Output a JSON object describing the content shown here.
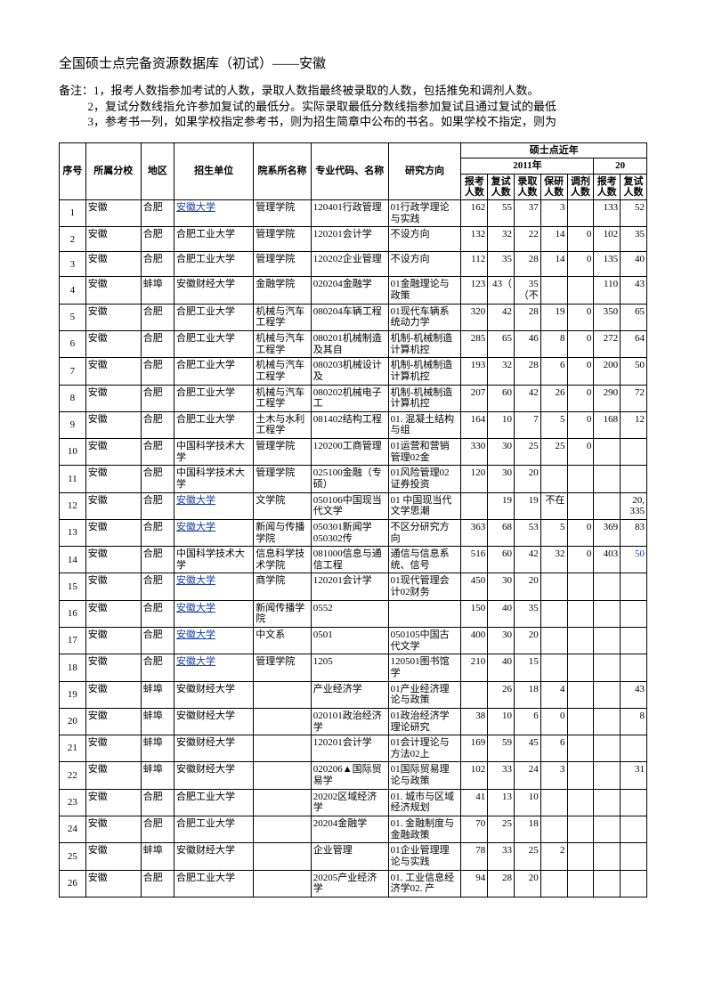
{
  "title": "全国硕士点完备资源数据库（初试）——安徽",
  "notes": {
    "label": "备注：",
    "n1": "1，报考人数指参加考试的人数，录取人数指最终被录取的人数，包括推免和调剂人数。",
    "n2": "2，复试分数线指允许参加复试的最低分。实际录取最低分数线指参加复试且通过复试的最低",
    "n3": "3，参考书一列，如果学校指定参考书，则为招生简章中公布的书名。如果学校不指定，则为"
  },
  "header": {
    "seq": "序号",
    "branch": "所属分校",
    "area": "地区",
    "unit": "招生单位",
    "dept": "院系所名称",
    "major": "专业代码、名称",
    "dir": "研究方向",
    "group": "硕士点近年",
    "y2011": "2011年",
    "y20": "20",
    "cols": [
      "报考人数",
      "复试人数",
      "录取人数",
      "保研人数",
      "调剂人数",
      "报考人数",
      "复试人数"
    ]
  },
  "rows": [
    {
      "i": "1",
      "b": "安徽",
      "a": "合肥",
      "u": "安徽大学",
      "uL": true,
      "d": "管理学院",
      "m": "120401行政管理",
      "r": "01行政学理论与实践",
      "n": [
        "162",
        "55",
        "37",
        "3",
        "",
        "133",
        "52"
      ]
    },
    {
      "i": "2",
      "b": "安徽",
      "a": "合肥",
      "u": "合肥工业大学",
      "d": "管理学院",
      "m": "120201会计学",
      "r": "不设方向",
      "n": [
        "132",
        "32",
        "22",
        "14",
        "0",
        "102",
        "35"
      ]
    },
    {
      "i": "3",
      "b": "安徽",
      "a": "合肥",
      "u": "合肥工业大学",
      "d": "管理学院",
      "m": "120202企业管理",
      "r": "不设方向",
      "n": [
        "112",
        "35",
        "28",
        "14",
        "0",
        "135",
        "40"
      ]
    },
    {
      "i": "4",
      "b": "安徽",
      "a": "蚌埠",
      "u": "安徽财经大学",
      "d": "金融学院",
      "m": "020204金融学",
      "r": "01金融理论与政策",
      "n": [
        "123",
        "43（",
        "35（不",
        "",
        "",
        "110",
        "43"
      ]
    },
    {
      "i": "5",
      "b": "安徽",
      "a": "合肥",
      "u": "合肥工业大学",
      "d": "机械与汽车工程学",
      "m": "080204车辆工程",
      "r": "01现代车辆系统动力学",
      "n": [
        "320",
        "42",
        "28",
        "19",
        "0",
        "350",
        "65"
      ]
    },
    {
      "i": "6",
      "b": "安徽",
      "a": "合肥",
      "u": "合肥工业大学",
      "d": "机械与汽车工程学",
      "m": "080201机械制造及其自",
      "r": "机制-机械制造计算机控",
      "n": [
        "285",
        "65",
        "46",
        "8",
        "0",
        "272",
        "64"
      ]
    },
    {
      "i": "7",
      "b": "安徽",
      "a": "合肥",
      "u": "合肥工业大学",
      "d": "机械与汽车工程学",
      "m": "080203机械设计及",
      "r": "机制-机械制造计算机控",
      "n": [
        "193",
        "32",
        "28",
        "6",
        "0",
        "200",
        "50"
      ]
    },
    {
      "i": "8",
      "b": "安徽",
      "a": "合肥",
      "u": "合肥工业大学",
      "d": "机械与汽车工程学",
      "m": "080202机械电子工",
      "r": "机制-机械制造计算机控",
      "n": [
        "207",
        "60",
        "42",
        "26",
        "0",
        "290",
        "72"
      ]
    },
    {
      "i": "9",
      "b": "安徽",
      "a": "合肥",
      "u": "合肥工业大学",
      "d": "土木与水利工程学",
      "m": "081402结构工程",
      "r": "01. 混凝土结构与组",
      "n": [
        "164",
        "10",
        "7",
        "5",
        "0",
        "168",
        "12"
      ]
    },
    {
      "i": "10",
      "b": "安徽",
      "a": "合肥",
      "u": "中国科学技术大学",
      "d": "管理学院",
      "m": "120200工商管理",
      "r": "01运营和营销管理02金",
      "n": [
        "330",
        "30",
        "25",
        "25",
        "0",
        "",
        ""
      ]
    },
    {
      "i": "11",
      "b": "安徽",
      "a": "合肥",
      "u": "中国科学技术大学",
      "d": "管理学院",
      "m": "025100金融（专硕）",
      "r": "01风险管理02证券投资",
      "n": [
        "120",
        "30",
        "20",
        "",
        "",
        "",
        ""
      ]
    },
    {
      "i": "12",
      "b": "安徽",
      "a": "合肥",
      "u": "安徽大学",
      "uL": true,
      "d": "文学院",
      "m": "050106中国现当代文学",
      "r": "01 中国现当代文学思潮",
      "n": [
        "",
        "19",
        "19",
        "不在",
        "",
        "",
        "20, 335"
      ]
    },
    {
      "i": "13",
      "b": "安徽",
      "a": "合肥",
      "u": "安徽大学",
      "uL": true,
      "d": "新闻与传播学院",
      "m": "050301新闻学050302传",
      "r": "不区分研究方向",
      "n": [
        "363",
        "68",
        "53",
        "5",
        "0",
        "369",
        "83"
      ]
    },
    {
      "i": "14",
      "b": "安徽",
      "a": "合肥",
      "u": "中国科学技术大学",
      "d": "信息科学技术学院",
      "m": "081000信息与通信工程",
      "r": "通信与信息系统、信号",
      "n": [
        "516",
        "60",
        "42",
        "32",
        "0",
        "403",
        "50"
      ],
      "blueLast": true
    },
    {
      "i": "15",
      "b": "安徽",
      "a": "合肥",
      "u": "安徽大学",
      "uL": true,
      "d": "商学院",
      "m": "120201会计学",
      "r": "01现代管理会计02财务",
      "n": [
        "450",
        "30",
        "20",
        "",
        "",
        "",
        ""
      ]
    },
    {
      "i": "16",
      "b": "安徽",
      "a": "合肥",
      "u": "安徽大学",
      "uL": true,
      "d": "新闻传播学院",
      "m": "0552",
      "r": "",
      "n": [
        "150",
        "40",
        "35",
        "",
        "",
        "",
        ""
      ]
    },
    {
      "i": "17",
      "b": "安徽",
      "a": "合肥",
      "u": "安徽大学",
      "uL": true,
      "d": "中文系",
      "m": "0501",
      "r": "050105中国古代文学",
      "n": [
        "400",
        "30",
        "20",
        "",
        "",
        "",
        ""
      ]
    },
    {
      "i": "18",
      "b": "安徽",
      "a": "合肥",
      "u": "安徽大学",
      "uL": true,
      "d": "管理学院",
      "m": "1205",
      "r": "120501图书馆学",
      "n": [
        "210",
        "40",
        "15",
        "",
        "",
        "",
        ""
      ]
    },
    {
      "i": "19",
      "b": "安徽",
      "a": "蚌埠",
      "u": "安徽财经大学",
      "d": "",
      "m": "产业经济学",
      "r": "01产业经济理论与政策",
      "n": [
        "",
        "26",
        "18",
        "4",
        "",
        "",
        "43"
      ]
    },
    {
      "i": "20",
      "b": "安徽",
      "a": "蚌埠",
      "u": "安徽财经大学",
      "d": "",
      "m": "020101政治经济学",
      "r": "01政治经济学理论研究",
      "n": [
        "38",
        "10",
        "6",
        "0",
        "",
        "",
        "8"
      ]
    },
    {
      "i": "21",
      "b": "安徽",
      "a": "蚌埠",
      "u": "安徽财经大学",
      "d": "",
      "m": "120201会计学",
      "r": "01会计理论与方法02上",
      "n": [
        "169",
        "59",
        "45",
        "6",
        "",
        "",
        ""
      ]
    },
    {
      "i": "22",
      "b": "安徽",
      "a": "蚌埠",
      "u": "安徽财经大学",
      "d": "",
      "m": "020206▲国际贸易学",
      "r": "01国际贸易理论与政策",
      "n": [
        "102",
        "33",
        "24",
        "3",
        "",
        "",
        "31"
      ]
    },
    {
      "i": "23",
      "b": "安徽",
      "a": "合肥",
      "u": "合肥工业大学",
      "d": "",
      "m": "20202区域经济学",
      "r": "01. 城市与区域经济规划",
      "n": [
        "41",
        "13",
        "10",
        "",
        "",
        "",
        ""
      ]
    },
    {
      "i": "24",
      "b": "安徽",
      "a": "合肥",
      "u": "合肥工业大学",
      "d": "",
      "m": "20204金融学",
      "r": "01. 金融制度与金融政策",
      "n": [
        "70",
        "25",
        "18",
        "",
        "",
        "",
        ""
      ]
    },
    {
      "i": "25",
      "b": "安徽",
      "a": "蚌埠",
      "u": "安徽财经大学",
      "d": "",
      "m": "企业管理",
      "r": "01企业管理理论与实践",
      "n": [
        "78",
        "33",
        "25",
        "2",
        "",
        "",
        ""
      ]
    },
    {
      "i": "26",
      "b": "安徽",
      "a": "合肥",
      "u": "合肥工业大学",
      "d": "",
      "m": "20205产业经济学",
      "r": "01. 工业信息经济学02. 产",
      "n": [
        "94",
        "28",
        "20",
        "",
        "",
        "",
        ""
      ]
    }
  ]
}
